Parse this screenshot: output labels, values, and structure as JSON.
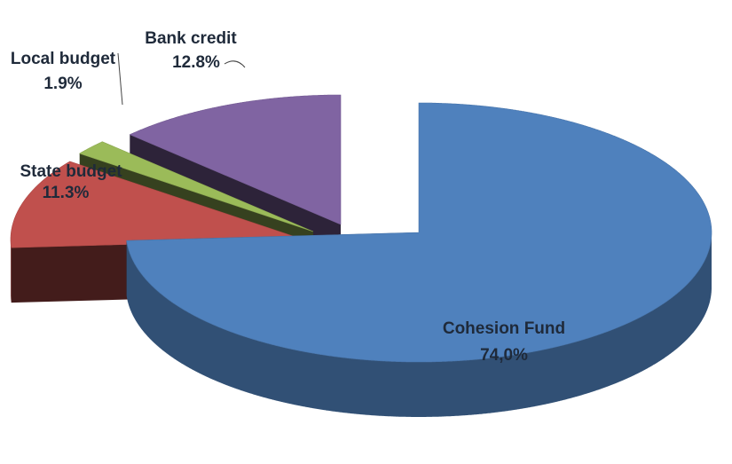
{
  "chart_data": {
    "type": "pie",
    "title": "",
    "exploded": true,
    "three_d": true,
    "legend": "none",
    "slices": [
      {
        "name": "Cohesion Fund",
        "value": 74.0,
        "value_label": "74,0%",
        "color": "#4F81BD"
      },
      {
        "name": "State budget",
        "value": 11.3,
        "value_label": "11.3%",
        "color": "#C0504D"
      },
      {
        "name": "Local budget",
        "value": 1.9,
        "value_label": "1.9%",
        "color": "#9BBB59"
      },
      {
        "name": "Bank credit",
        "value": 12.8,
        "value_label": "12.8%",
        "color": "#8064A2"
      }
    ]
  }
}
